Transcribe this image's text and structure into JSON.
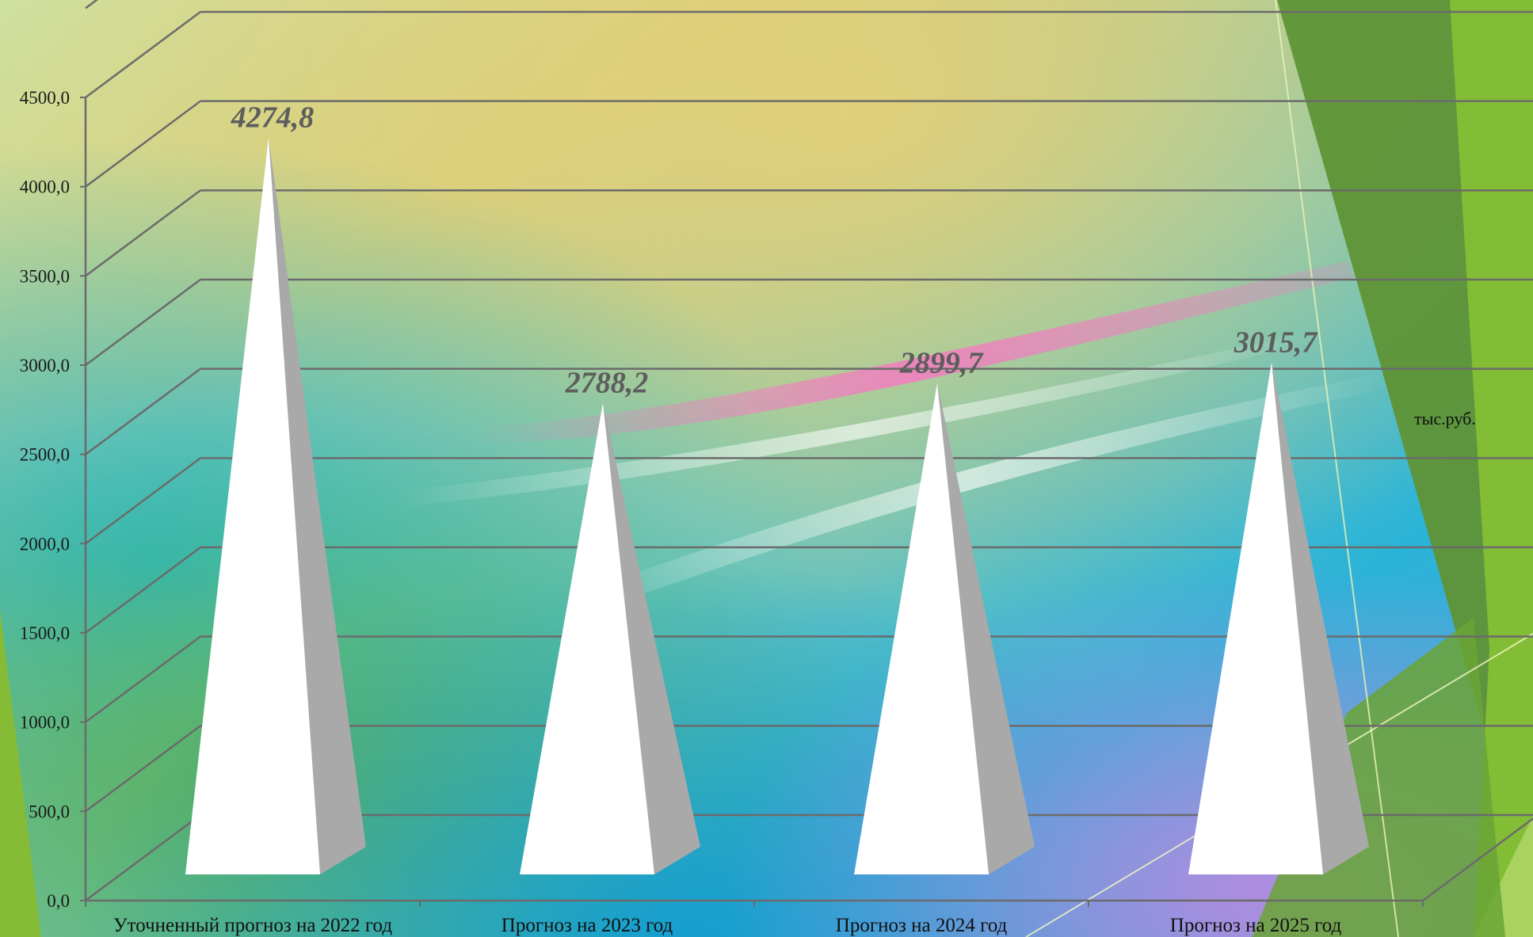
{
  "chart_data": {
    "type": "bar",
    "bar_shape": "pyramid-3d",
    "categories": [
      "Уточненный прогноз на 2022 год",
      "Прогноз на 2023 год",
      "Прогноз на 2024 год",
      "Прогноз на 2025 год"
    ],
    "values": [
      4274.8,
      2788.2,
      2899.7,
      3015.7
    ],
    "data_labels": [
      "4274,8",
      "2788,2",
      "2899,7",
      "3015,7"
    ],
    "y_ticks": [
      "0,0",
      "500,0",
      "1000,0",
      "1500,0",
      "2000,0",
      "2500,0",
      "3000,0",
      "3500,0",
      "4000,0",
      "4500,0"
    ],
    "ylim": [
      0,
      4500
    ],
    "unit_label": "тыс.руб.",
    "grid": true,
    "colors": {
      "pyramid_front": "#ffffff",
      "pyramid_side": "#a9a9a9",
      "grid": "#6b6b6b",
      "data_label": "#5d5d5d",
      "accent_green": "#7db832"
    }
  }
}
